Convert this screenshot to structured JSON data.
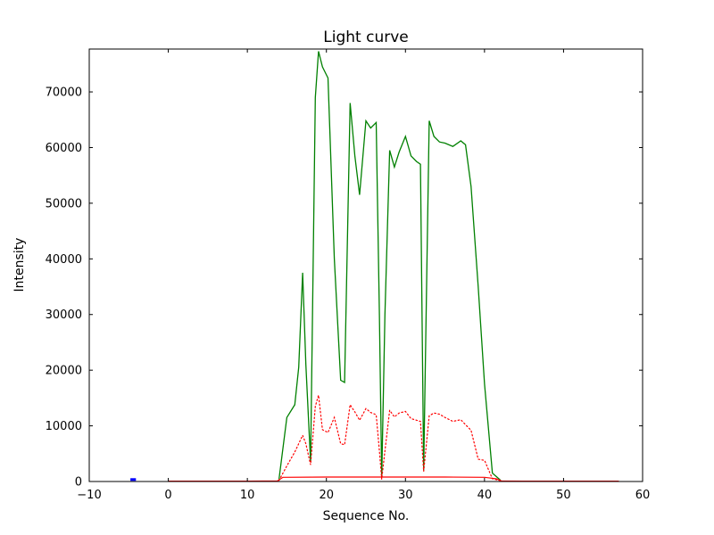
{
  "chart_data": {
    "type": "line",
    "title": "Light curve",
    "xlabel": "Sequence No.",
    "ylabel": "Intensity",
    "xlim": [
      -10,
      60
    ],
    "ylim": [
      0,
      77700
    ],
    "grid": false,
    "legend": "none",
    "background": "#ffffff",
    "spine_color": "#000000",
    "xticks": [
      -10,
      0,
      10,
      20,
      30,
      40,
      50,
      60
    ],
    "yticks": [
      0,
      10000,
      20000,
      30000,
      40000,
      50000,
      60000,
      70000
    ],
    "xtick_labels": [
      "−10",
      "0",
      "10",
      "20",
      "30",
      "40",
      "50",
      "60"
    ],
    "ytick_labels": [
      "0",
      "10000",
      "20000",
      "30000",
      "40000",
      "50000",
      "60000",
      "70000"
    ],
    "series": [
      {
        "name": "intensity-main",
        "color": "#008000",
        "style": "solid",
        "width": 1.3,
        "x": [
          14.0,
          15.0,
          16.0,
          16.5,
          17.0,
          17.4,
          18.0,
          18.6,
          19.0,
          19.5,
          20.2,
          21.0,
          21.8,
          22.3,
          23.0,
          23.6,
          24.2,
          25.0,
          25.6,
          26.3,
          26.7,
          27.0,
          27.4,
          28.0,
          28.6,
          29.2,
          30.0,
          30.7,
          31.4,
          31.9,
          32.3,
          33.0,
          33.6,
          34.3,
          35.0,
          36.0,
          37.0,
          37.6,
          38.3,
          39.2,
          40.0,
          41.0,
          42.0
        ],
        "y": [
          400,
          11500,
          13800,
          20500,
          37500,
          21000,
          3500,
          69000,
          77300,
          74500,
          72500,
          40000,
          18200,
          17800,
          68000,
          58500,
          51500,
          64800,
          63500,
          64500,
          30000,
          700,
          30000,
          59500,
          56500,
          59200,
          62000,
          58500,
          57500,
          57000,
          2000,
          64800,
          62000,
          61000,
          60800,
          60200,
          61200,
          60500,
          53000,
          35000,
          17500,
          1500,
          250
        ]
      },
      {
        "name": "intensity-secondary-dotted",
        "color": "#ff0000",
        "style": "dotted",
        "width": 1.2,
        "x": [
          14.0,
          15.0,
          16.0,
          17.0,
          17.4,
          18.0,
          18.6,
          19.0,
          19.5,
          20.2,
          21.0,
          21.8,
          22.3,
          23.0,
          23.6,
          24.2,
          25.0,
          25.6,
          26.3,
          26.7,
          27.0,
          27.4,
          28.0,
          28.6,
          29.2,
          30.0,
          30.7,
          31.4,
          31.9,
          32.3,
          33.0,
          33.6,
          34.3,
          35.0,
          36.0,
          37.0,
          37.6,
          38.3,
          39.2,
          40.0,
          41.0,
          42.0
        ],
        "y": [
          200,
          2800,
          5300,
          8300,
          6800,
          3000,
          13500,
          15500,
          9300,
          8800,
          11500,
          6800,
          6600,
          13800,
          12500,
          11000,
          13100,
          12400,
          12000,
          5500,
          400,
          5500,
          12800,
          11600,
          12300,
          12600,
          11300,
          11000,
          10800,
          1800,
          11800,
          12300,
          12100,
          11500,
          10800,
          11100,
          10200,
          9200,
          4000,
          3800,
          500,
          150
        ]
      },
      {
        "name": "baseline-red",
        "color": "#ff0000",
        "style": "solid",
        "width": 1.2,
        "x": [
          0,
          5,
          10,
          13.8,
          14.5,
          20,
          25,
          30,
          35,
          40,
          41.5,
          42.2,
          45,
          50,
          57
        ],
        "y": [
          60,
          60,
          60,
          100,
          750,
          800,
          800,
          800,
          800,
          750,
          500,
          80,
          60,
          60,
          60
        ]
      },
      {
        "name": "marker-blue",
        "color": "#0000ff",
        "style": "solid",
        "width": 3,
        "x": [
          -4.8,
          -4.1
        ],
        "y": [
          350,
          350
        ]
      }
    ]
  }
}
